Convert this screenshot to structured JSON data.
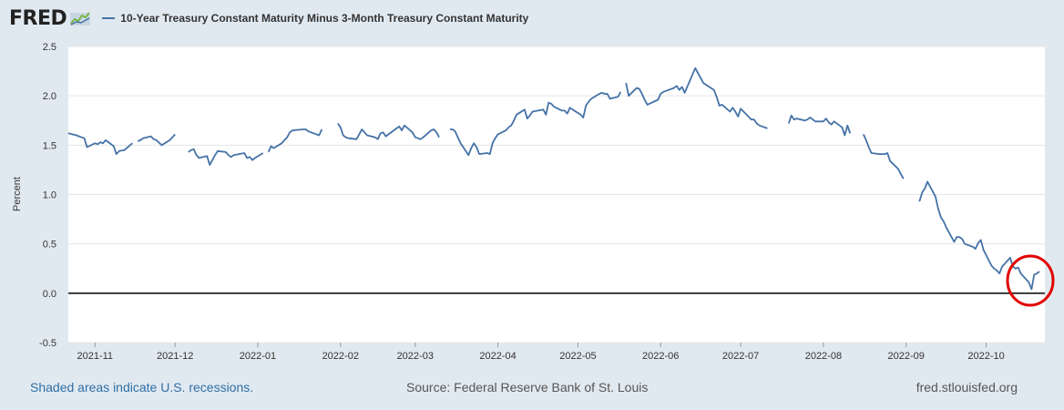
{
  "header": {
    "logo_text": "FRED",
    "legend_label": "10-Year Treasury Constant Maturity Minus 3-Month Treasury Constant Maturity"
  },
  "footer": {
    "recession_note": "Shaded areas indicate U.S. recessions.",
    "source": "Source: Federal Reserve Bank of St. Louis",
    "url": "fred.stlouisfed.org"
  },
  "chart_data": {
    "type": "line",
    "ylabel": "Percent",
    "ylim": [
      -0.5,
      2.5
    ],
    "yticks": [
      -0.5,
      0.0,
      0.5,
      1.0,
      1.5,
      2.0,
      2.5
    ],
    "xlim": [
      "2021-10-22",
      "2022-10-23"
    ],
    "xticks": [
      "2021-11",
      "2021-12",
      "2022-01",
      "2022-02",
      "2022-03",
      "2022-04",
      "2022-05",
      "2022-06",
      "2022-07",
      "2022-08",
      "2022-09",
      "2022-10"
    ],
    "grid": true,
    "legend": "top-left",
    "zero_line": true,
    "line_color": "#4572a7",
    "annotation_color": "#e00000",
    "series": [
      {
        "name": "10-Year Treasury Constant Maturity Minus 3-Month Treasury Constant Maturity",
        "segments": [
          [
            [
              "2021-10-22",
              1.62
            ],
            [
              "2021-10-25",
              1.6
            ],
            [
              "2021-10-26",
              1.59
            ],
            [
              "2021-10-27",
              1.58
            ],
            [
              "2021-10-28",
              1.57
            ],
            [
              "2021-10-29",
              1.48
            ],
            [
              "2021-11-01",
              1.52
            ],
            [
              "2021-11-02",
              1.51
            ],
            [
              "2021-11-03",
              1.53
            ],
            [
              "2021-11-04",
              1.52
            ],
            [
              "2021-11-05",
              1.55
            ],
            [
              "2021-11-08",
              1.49
            ],
            [
              "2021-11-09",
              1.41
            ],
            [
              "2021-11-10",
              1.44
            ],
            [
              "2021-11-12",
              1.45
            ],
            [
              "2021-11-15",
              1.52
            ]
          ],
          [
            [
              "2021-11-17",
              1.54
            ],
            [
              "2021-11-18",
              1.55
            ],
            [
              "2021-11-19",
              1.57
            ],
            [
              "2021-11-22",
              1.59
            ],
            [
              "2021-11-23",
              1.56
            ],
            [
              "2021-11-24",
              1.55
            ],
            [
              "2021-11-26",
              1.5
            ],
            [
              "2021-11-29",
              1.55
            ],
            [
              "2021-11-30",
              1.58
            ],
            [
              "2021-12-01",
              1.61
            ]
          ],
          [
            [
              "2021-12-06",
              1.43
            ],
            [
              "2021-12-07",
              1.45
            ],
            [
              "2021-12-08",
              1.46
            ],
            [
              "2021-12-09",
              1.4
            ],
            [
              "2021-12-10",
              1.37
            ],
            [
              "2021-12-13",
              1.39
            ],
            [
              "2021-12-14",
              1.3
            ],
            [
              "2021-12-15",
              1.35
            ],
            [
              "2021-12-16",
              1.4
            ],
            [
              "2021-12-17",
              1.44
            ],
            [
              "2021-12-20",
              1.43
            ],
            [
              "2021-12-21",
              1.4
            ],
            [
              "2021-12-22",
              1.38
            ],
            [
              "2021-12-23",
              1.4
            ],
            [
              "2021-12-27",
              1.42
            ],
            [
              "2021-12-28",
              1.37
            ],
            [
              "2021-12-29",
              1.38
            ],
            [
              "2021-12-30",
              1.35
            ],
            [
              "2021-12-31",
              1.37
            ],
            [
              "2022-01-03",
              1.42
            ]
          ],
          [
            [
              "2022-01-05",
              1.43
            ],
            [
              "2022-01-06",
              1.49
            ],
            [
              "2022-01-07",
              1.47
            ],
            [
              "2022-01-10",
              1.52
            ],
            [
              "2022-01-11",
              1.55
            ],
            [
              "2022-01-12",
              1.58
            ],
            [
              "2022-01-13",
              1.63
            ],
            [
              "2022-01-14",
              1.65
            ],
            [
              "2022-01-18",
              1.66
            ],
            [
              "2022-01-19",
              1.66
            ],
            [
              "2022-01-20",
              1.64
            ],
            [
              "2022-01-21",
              1.63
            ],
            [
              "2022-01-24",
              1.6
            ],
            [
              "2022-01-25",
              1.66
            ]
          ],
          [
            [
              "2022-01-31",
              1.72
            ],
            [
              "2022-02-01",
              1.68
            ],
            [
              "2022-02-02",
              1.6
            ],
            [
              "2022-02-03",
              1.58
            ],
            [
              "2022-02-04",
              1.57
            ],
            [
              "2022-02-07",
              1.56
            ],
            [
              "2022-02-08",
              1.61
            ],
            [
              "2022-02-09",
              1.66
            ],
            [
              "2022-02-10",
              1.63
            ],
            [
              "2022-02-11",
              1.6
            ],
            [
              "2022-02-14",
              1.58
            ],
            [
              "2022-02-15",
              1.56
            ],
            [
              "2022-02-16",
              1.62
            ],
            [
              "2022-02-17",
              1.63
            ],
            [
              "2022-02-18",
              1.59
            ],
            [
              "2022-02-22",
              1.67
            ],
            [
              "2022-02-23",
              1.69
            ],
            [
              "2022-02-24",
              1.65
            ],
            [
              "2022-02-25",
              1.7
            ],
            [
              "2022-02-28",
              1.63
            ],
            [
              "2022-03-01",
              1.58
            ],
            [
              "2022-03-02",
              1.57
            ],
            [
              "2022-03-03",
              1.56
            ],
            [
              "2022-03-04",
              1.58
            ],
            [
              "2022-03-07",
              1.65
            ],
            [
              "2022-03-08",
              1.66
            ],
            [
              "2022-03-09",
              1.63
            ],
            [
              "2022-03-10",
              1.58
            ]
          ],
          [
            [
              "2022-03-14",
              1.66
            ],
            [
              "2022-03-15",
              1.66
            ],
            [
              "2022-03-16",
              1.64
            ],
            [
              "2022-03-17",
              1.58
            ],
            [
              "2022-03-18",
              1.52
            ],
            [
              "2022-03-21",
              1.4
            ],
            [
              "2022-03-22",
              1.47
            ],
            [
              "2022-03-23",
              1.52
            ],
            [
              "2022-03-24",
              1.48
            ],
            [
              "2022-03-25",
              1.41
            ],
            [
              "2022-03-28",
              1.42
            ],
            [
              "2022-03-29",
              1.41
            ],
            [
              "2022-03-30",
              1.52
            ],
            [
              "2022-03-31",
              1.57
            ],
            [
              "2022-04-01",
              1.61
            ],
            [
              "2022-04-04",
              1.65
            ],
            [
              "2022-04-05",
              1.68
            ],
            [
              "2022-04-06",
              1.7
            ],
            [
              "2022-04-07",
              1.75
            ],
            [
              "2022-04-08",
              1.81
            ],
            [
              "2022-04-11",
              1.86
            ],
            [
              "2022-04-12",
              1.77
            ],
            [
              "2022-04-13",
              1.8
            ],
            [
              "2022-04-14",
              1.84
            ],
            [
              "2022-04-18",
              1.86
            ],
            [
              "2022-04-19",
              1.81
            ],
            [
              "2022-04-20",
              1.93
            ],
            [
              "2022-04-21",
              1.92
            ],
            [
              "2022-04-22",
              1.89
            ],
            [
              "2022-04-25",
              1.85
            ],
            [
              "2022-04-26",
              1.85
            ],
            [
              "2022-04-27",
              1.82
            ],
            [
              "2022-04-28",
              1.88
            ],
            [
              "2022-04-29",
              1.86
            ],
            [
              "2022-05-02",
              1.81
            ],
            [
              "2022-05-03",
              1.78
            ],
            [
              "2022-05-04",
              1.9
            ],
            [
              "2022-05-05",
              1.94
            ],
            [
              "2022-05-06",
              1.97
            ],
            [
              "2022-05-09",
              2.02
            ],
            [
              "2022-05-10",
              2.03
            ],
            [
              "2022-05-11",
              2.02
            ],
            [
              "2022-05-12",
              2.02
            ],
            [
              "2022-05-13",
              1.97
            ],
            [
              "2022-05-16",
              1.99
            ],
            [
              "2022-05-17",
              2.04
            ]
          ],
          [
            [
              "2022-05-19",
              2.13
            ],
            [
              "2022-05-20",
              2.0
            ],
            [
              "2022-05-23",
              2.08
            ],
            [
              "2022-05-24",
              2.07
            ],
            [
              "2022-05-25",
              2.02
            ],
            [
              "2022-05-26",
              1.96
            ],
            [
              "2022-05-27",
              1.91
            ],
            [
              "2022-05-31",
              1.96
            ],
            [
              "2022-06-01",
              2.02
            ],
            [
              "2022-06-02",
              2.04
            ],
            [
              "2022-06-03",
              2.05
            ],
            [
              "2022-06-06",
              2.08
            ],
            [
              "2022-06-07",
              2.1
            ],
            [
              "2022-06-08",
              2.06
            ],
            [
              "2022-06-09",
              2.09
            ],
            [
              "2022-06-10",
              2.03
            ],
            [
              "2022-06-13",
              2.22
            ],
            [
              "2022-06-14",
              2.28
            ],
            [
              "2022-06-15",
              2.23
            ],
            [
              "2022-06-16",
              2.18
            ],
            [
              "2022-06-17",
              2.13
            ],
            [
              "2022-06-21",
              2.06
            ],
            [
              "2022-06-22",
              1.99
            ],
            [
              "2022-06-23",
              1.9
            ],
            [
              "2022-06-24",
              1.91
            ],
            [
              "2022-06-27",
              1.84
            ],
            [
              "2022-06-28",
              1.88
            ],
            [
              "2022-06-29",
              1.84
            ],
            [
              "2022-06-30",
              1.79
            ],
            [
              "2022-07-01",
              1.87
            ],
            [
              "2022-07-05",
              1.76
            ],
            [
              "2022-07-06",
              1.76
            ],
            [
              "2022-07-07",
              1.72
            ],
            [
              "2022-07-08",
              1.7
            ],
            [
              "2022-07-11",
              1.67
            ]
          ],
          [
            [
              "2022-07-19",
              1.72
            ],
            [
              "2022-07-20",
              1.8
            ],
            [
              "2022-07-21",
              1.76
            ],
            [
              "2022-07-22",
              1.77
            ],
            [
              "2022-07-25",
              1.75
            ],
            [
              "2022-07-26",
              1.76
            ],
            [
              "2022-07-27",
              1.78
            ],
            [
              "2022-07-28",
              1.76
            ],
            [
              "2022-07-29",
              1.74
            ],
            [
              "2022-08-01",
              1.74
            ],
            [
              "2022-08-02",
              1.77
            ],
            [
              "2022-08-03",
              1.73
            ],
            [
              "2022-08-04",
              1.71
            ],
            [
              "2022-08-05",
              1.74
            ],
            [
              "2022-08-08",
              1.68
            ],
            [
              "2022-08-09",
              1.6
            ],
            [
              "2022-08-10",
              1.7
            ],
            [
              "2022-08-11",
              1.62
            ]
          ],
          [
            [
              "2022-08-16",
              1.61
            ],
            [
              "2022-08-17",
              1.55
            ],
            [
              "2022-08-18",
              1.48
            ],
            [
              "2022-08-19",
              1.42
            ],
            [
              "2022-08-22",
              1.41
            ],
            [
              "2022-08-23",
              1.41
            ],
            [
              "2022-08-24",
              1.41
            ],
            [
              "2022-08-25",
              1.42
            ],
            [
              "2022-08-26",
              1.34
            ],
            [
              "2022-08-29",
              1.26
            ],
            [
              "2022-08-30",
              1.21
            ],
            [
              "2022-08-31",
              1.16
            ]
          ],
          [
            [
              "2022-09-06",
              0.93
            ],
            [
              "2022-09-07",
              1.02
            ],
            [
              "2022-09-08",
              1.06
            ],
            [
              "2022-09-09",
              1.13
            ],
            [
              "2022-09-12",
              0.98
            ],
            [
              "2022-09-13",
              0.86
            ],
            [
              "2022-09-14",
              0.77
            ],
            [
              "2022-09-15",
              0.73
            ],
            [
              "2022-09-16",
              0.67
            ],
            [
              "2022-09-19",
              0.52
            ],
            [
              "2022-09-20",
              0.57
            ],
            [
              "2022-09-21",
              0.57
            ],
            [
              "2022-09-22",
              0.55
            ],
            [
              "2022-09-23",
              0.5
            ],
            [
              "2022-09-26",
              0.47
            ],
            [
              "2022-09-27",
              0.45
            ],
            [
              "2022-09-28",
              0.51
            ],
            [
              "2022-09-29",
              0.54
            ],
            [
              "2022-09-30",
              0.44
            ],
            [
              "2022-10-03",
              0.28
            ],
            [
              "2022-10-04",
              0.25
            ],
            [
              "2022-10-05",
              0.23
            ],
            [
              "2022-10-06",
              0.2
            ],
            [
              "2022-10-07",
              0.27
            ],
            [
              "2022-10-10",
              0.36
            ],
            [
              "2022-10-11",
              0.27
            ],
            [
              "2022-10-12",
              0.25
            ],
            [
              "2022-10-13",
              0.26
            ],
            [
              "2022-10-14",
              0.2
            ],
            [
              "2022-10-17",
              0.11
            ],
            [
              "2022-10-18",
              0.04
            ],
            [
              "2022-10-19",
              0.19
            ],
            [
              "2022-10-20",
              0.2
            ],
            [
              "2022-10-21",
              0.22
            ]
          ]
        ]
      }
    ]
  }
}
